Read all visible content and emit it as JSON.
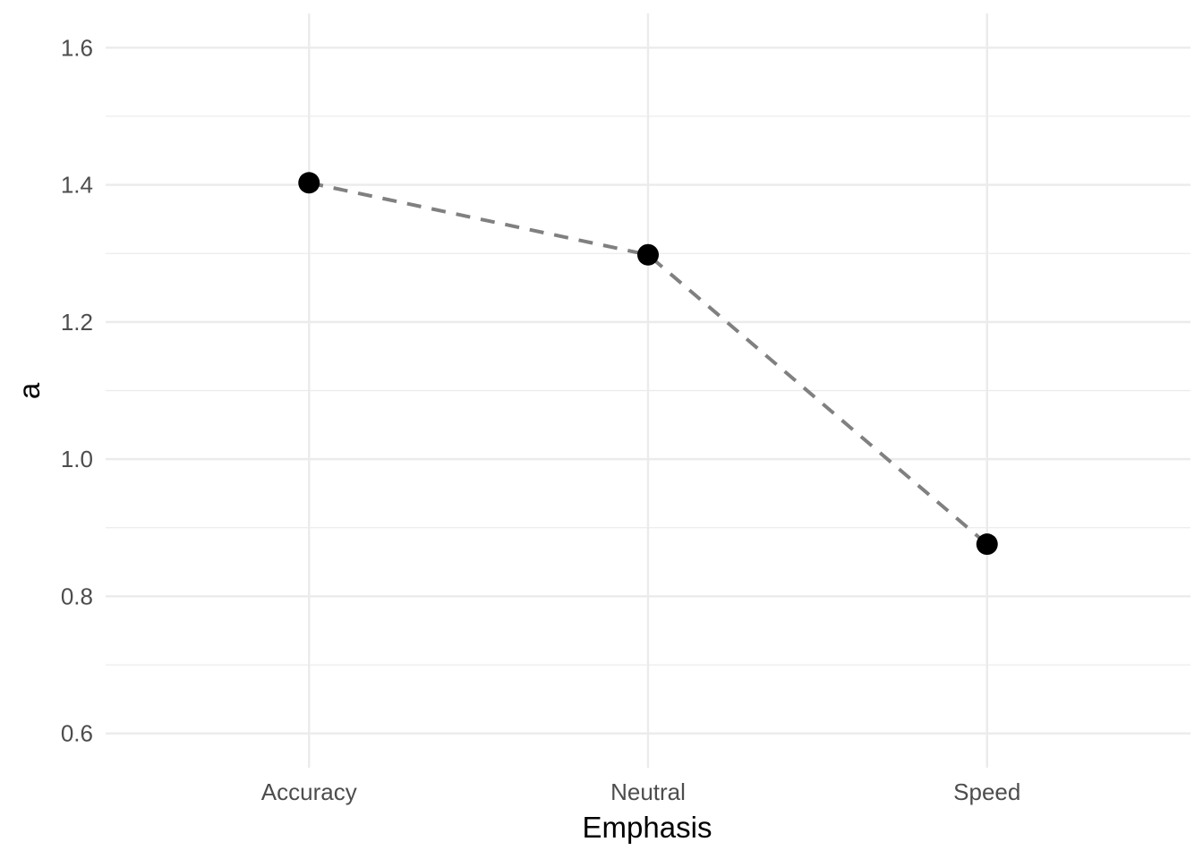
{
  "chart_data": {
    "type": "line",
    "title": "",
    "xlabel": "Emphasis",
    "ylabel": "a",
    "categories": [
      "Accuracy",
      "Neutral",
      "Speed"
    ],
    "values": [
      1.403,
      1.298,
      0.876
    ],
    "ylim": [
      0.55,
      1.65
    ],
    "yticks": [
      0.6,
      0.8,
      1.0,
      1.2,
      1.4,
      1.6
    ],
    "ytick_labels": [
      "0.6",
      "0.8",
      "1.0",
      "1.2",
      "1.4",
      "1.6"
    ],
    "grid": true,
    "line_style": "dashed",
    "line_color": "#808080",
    "point_color": "#000000",
    "grid_color": "#ebebeb"
  }
}
